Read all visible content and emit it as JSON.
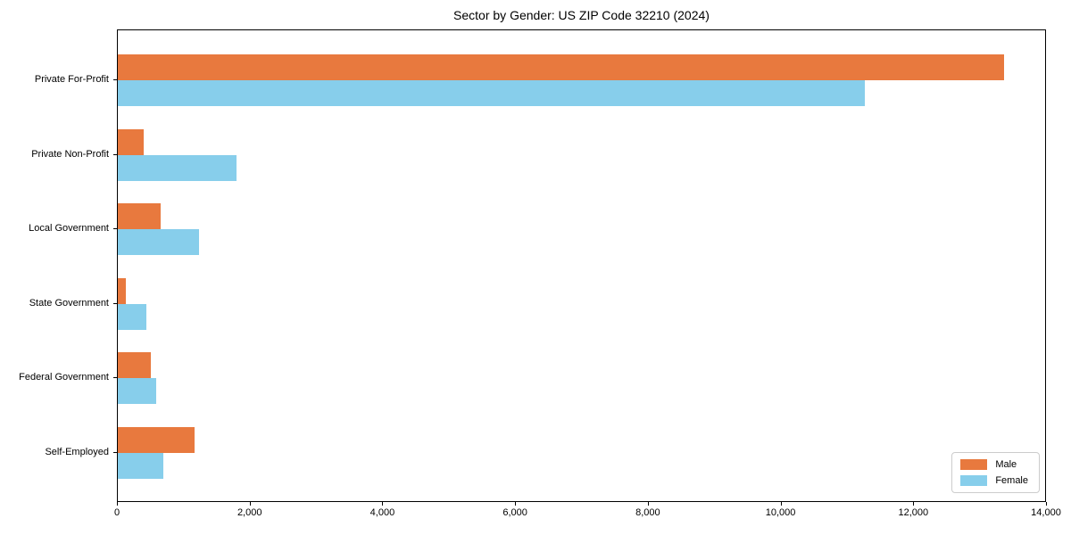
{
  "title": "Sector by Gender: US ZIP Code 32210 (2024)",
  "colors": {
    "male": "#e8793e",
    "female": "#87ceeb",
    "axis": "#000000",
    "legend_border": "#cccccc",
    "background": "#ffffff"
  },
  "legend": {
    "items": [
      {
        "label": "Male",
        "color_key": "male"
      },
      {
        "label": "Female",
        "color_key": "female"
      }
    ],
    "position": "lower right"
  },
  "chart_data": {
    "type": "bar",
    "orientation": "horizontal",
    "title": "Sector by Gender: US ZIP Code 32210 (2024)",
    "categories": [
      "Private For-Profit",
      "Private Non-Profit",
      "Local Government",
      "State Government",
      "Federal Government",
      "Self-Employed"
    ],
    "series": [
      {
        "name": "Male",
        "color": "#e8793e",
        "values": [
          13350,
          390,
          640,
          120,
          500,
          1160
        ]
      },
      {
        "name": "Female",
        "color": "#87ceeb",
        "values": [
          11250,
          1790,
          1220,
          430,
          580,
          690
        ]
      }
    ],
    "xlabel": "",
    "ylabel": "",
    "xlim": [
      0,
      14000
    ],
    "x_ticks": [
      0,
      2000,
      4000,
      6000,
      8000,
      10000,
      12000,
      14000
    ],
    "x_tick_labels": [
      "0",
      "2,000",
      "4,000",
      "6,000",
      "8,000",
      "10,000",
      "12,000",
      "14,000"
    ],
    "grid": false,
    "legend_position": "lower right"
  }
}
